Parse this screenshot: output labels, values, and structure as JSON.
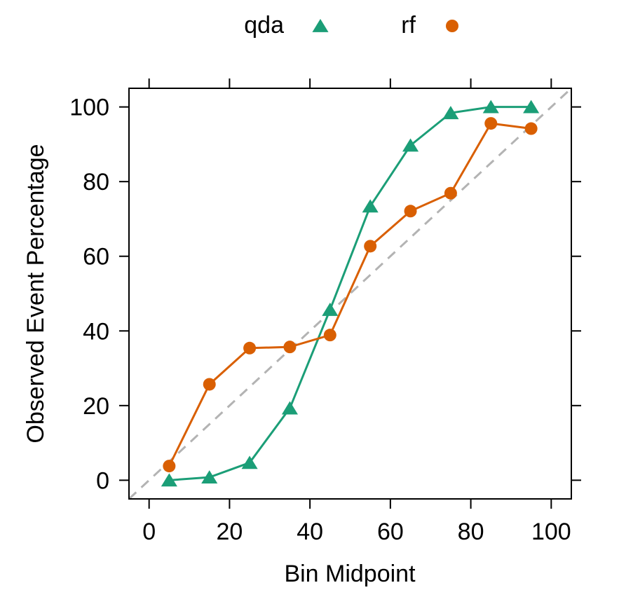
{
  "chart_data": {
    "type": "line",
    "xlabel": "Bin Midpoint",
    "ylabel": "Observed Event Percentage",
    "xlim": [
      -5,
      105
    ],
    "ylim": [
      -5,
      105
    ],
    "x_ticks": [
      0,
      20,
      40,
      60,
      80,
      100
    ],
    "y_ticks": [
      0,
      20,
      40,
      60,
      80,
      100
    ],
    "x": [
      5,
      15,
      25,
      35,
      45,
      55,
      65,
      75,
      85,
      95
    ],
    "reference_line": {
      "from": [
        0,
        0
      ],
      "to": [
        100,
        100
      ],
      "style": "dashed",
      "color": "#b3b3b3"
    },
    "grid": false,
    "legend_position": "top",
    "series": [
      {
        "name": "qda",
        "color": "#1b9e77",
        "marker": "triangle",
        "values": [
          0,
          0.8,
          4.7,
          19.3,
          45.7,
          73.4,
          89.7,
          98.4,
          100,
          100
        ]
      },
      {
        "name": "rf",
        "color": "#d95f02",
        "marker": "circle",
        "values": [
          3.8,
          25.7,
          35.4,
          35.7,
          38.9,
          62.7,
          72.1,
          76.9,
          95.6,
          94.2
        ]
      }
    ]
  }
}
